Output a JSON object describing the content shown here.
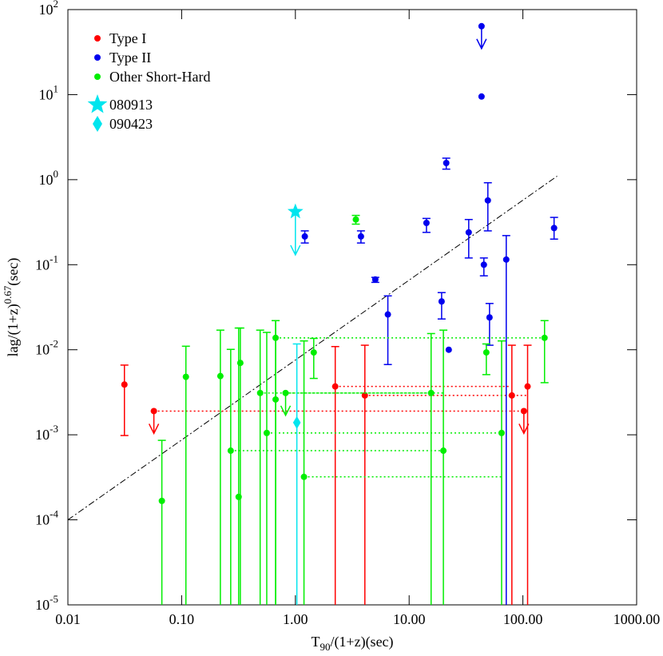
{
  "chart_data": {
    "type": "scatter",
    "xscale": "log",
    "yscale": "log",
    "xlim": [
      0.01,
      1000
    ],
    "ylim": [
      1e-05,
      100
    ],
    "xticks": [
      {
        "value": 0.01,
        "label": "0.01"
      },
      {
        "value": 0.1,
        "label": "0.10"
      },
      {
        "value": 1,
        "label": "1.00"
      },
      {
        "value": 10,
        "label": "10.00"
      },
      {
        "value": 100,
        "label": "100.00"
      },
      {
        "value": 1000,
        "label": "1000.00"
      }
    ],
    "yticks": [
      {
        "value": 1e-05,
        "label": "10",
        "power": "-5"
      },
      {
        "value": 0.0001,
        "label": "10",
        "power": "-4"
      },
      {
        "value": 0.001,
        "label": "10",
        "power": "-3"
      },
      {
        "value": 0.01,
        "label": "10",
        "power": "-2"
      },
      {
        "value": 0.1,
        "label": "10",
        "power": "-1"
      },
      {
        "value": 1,
        "label": "10",
        "power": "0"
      },
      {
        "value": 10,
        "label": "10",
        "power": "1"
      },
      {
        "value": 100,
        "label": "10",
        "power": "2"
      }
    ],
    "xlabel": {
      "main": "T",
      "sub": "90",
      "rest": "/(1+z)(sec)"
    },
    "ylabel": {
      "main": "lag/(1+z)",
      "sup": "0.67",
      "rest": "(sec)"
    },
    "series": [
      {
        "name": "Type I",
        "color": "#ff0000",
        "marker": "circle",
        "x": [
          0.0314,
          0.057,
          2.24,
          4.08,
          80,
          102,
          110
        ],
        "y": [
          0.0039,
          0.0019,
          0.0037,
          0.0029,
          0.0029,
          0.0019,
          0.0037
        ],
        "y_low": [
          0.00098,
          null,
          1e-05,
          1e-05,
          1e-05,
          null,
          1e-05
        ],
        "y_high": [
          0.0066,
          null,
          0.0109,
          0.0113,
          0.0113,
          null,
          0.0113
        ],
        "upper_limit": [
          false,
          true,
          false,
          false,
          false,
          true,
          false
        ],
        "x_end": [
          null,
          100,
          78,
          110,
          null,
          null,
          null
        ]
      },
      {
        "name": "Type II",
        "color": "#0000ee",
        "marker": "circle",
        "x": [
          43.3,
          43.3,
          21.2,
          49.2,
          188,
          14.2,
          33.4,
          1.21,
          3.77,
          45.4,
          71.4,
          5.04,
          19.3,
          6.5,
          50.9,
          22.3
        ],
        "y": [
          63.8,
          9.5,
          1.57,
          0.57,
          0.27,
          0.31,
          0.24,
          0.215,
          0.215,
          0.1,
          0.115,
          0.067,
          0.037,
          0.026,
          0.024,
          0.01
        ],
        "y_low": [
          null,
          null,
          1.33,
          0.25,
          0.2,
          0.24,
          0.12,
          0.18,
          0.18,
          0.074,
          1e-05,
          0.062,
          0.023,
          0.0067,
          0.0113,
          null
        ],
        "y_high": [
          null,
          null,
          1.79,
          0.92,
          0.36,
          0.35,
          0.34,
          0.25,
          0.25,
          0.12,
          0.22,
          0.071,
          0.047,
          0.043,
          0.035,
          null
        ],
        "upper_limit": [
          true,
          false,
          false,
          false,
          false,
          false,
          false,
          false,
          false,
          false,
          false,
          false,
          false,
          false,
          false,
          false
        ],
        "x_end": [
          null,
          null,
          null,
          null,
          null,
          null,
          null,
          null,
          null,
          null,
          null,
          null,
          null,
          null,
          null,
          null
        ]
      },
      {
        "name": "Other Short-Hard",
        "color": "#00ee00",
        "marker": "circle",
        "x": [
          0.067,
          0.109,
          0.219,
          0.27,
          0.317,
          0.328,
          0.49,
          0.56,
          0.67,
          0.67,
          0.82,
          1.19,
          1.45,
          3.4,
          15.6,
          20,
          65,
          47.7,
          155
        ],
        "y": [
          0.000167,
          0.0048,
          0.0049,
          0.00065,
          0.000186,
          0.007,
          0.0031,
          0.00105,
          0.0026,
          0.0138,
          0.0031,
          0.00032,
          0.0093,
          0.34,
          0.0031,
          0.00065,
          0.00105,
          0.0093,
          0.0138
        ],
        "y_low": [
          1e-05,
          1e-05,
          1e-05,
          1e-05,
          1e-05,
          1e-05,
          1e-05,
          1e-05,
          1e-05,
          1e-05,
          null,
          1e-05,
          0.0046,
          0.3,
          1e-05,
          1e-05,
          1e-05,
          0.0051,
          0.0041
        ],
        "y_high": [
          0.00086,
          0.011,
          0.017,
          0.0101,
          0.018,
          0.018,
          0.017,
          0.016,
          0.022,
          0.022,
          null,
          0.0127,
          0.0136,
          0.38,
          0.0155,
          0.017,
          0.0127,
          0.0117,
          0.022
        ],
        "upper_limit": [
          false,
          false,
          false,
          false,
          false,
          false,
          false,
          false,
          false,
          false,
          true,
          false,
          false,
          false,
          false,
          false,
          false,
          false,
          false
        ],
        "x_end": [
          null,
          null,
          null,
          20,
          null,
          null,
          15.6,
          65,
          null,
          155,
          20,
          65,
          null,
          null,
          null,
          null,
          null,
          null,
          null
        ]
      },
      {
        "name": "080913",
        "color": "#00e5ee",
        "marker": "star",
        "x": [
          1.0
        ],
        "y": [
          0.42
        ],
        "y_low": [
          null
        ],
        "y_high": [
          null
        ],
        "upper_limit": [
          true
        ],
        "x_end": [
          null
        ]
      },
      {
        "name": "090423",
        "color": "#00e5ee",
        "marker": "diamond",
        "x": [
          1.03
        ],
        "y": [
          0.00139
        ],
        "y_low": [
          1e-05
        ],
        "y_high": [
          0.0117
        ],
        "upper_limit": [
          false
        ],
        "x_end": [
          null
        ]
      }
    ],
    "lines": [
      {
        "x": [
          0.01,
          200
        ],
        "y": [
          0.0001,
          1.1
        ],
        "style": "dashdot",
        "color": "#000000"
      }
    ]
  }
}
